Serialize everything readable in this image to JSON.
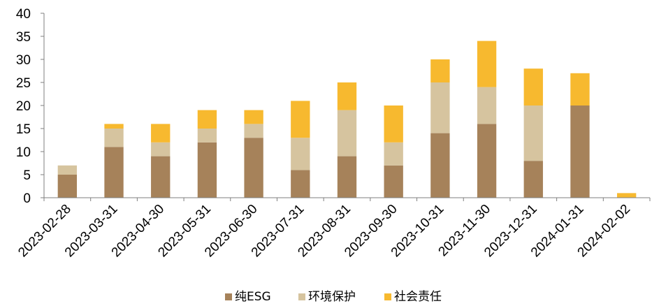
{
  "chart_data": {
    "type": "bar",
    "stacked": true,
    "title": "",
    "xlabel": "",
    "ylabel": "",
    "ylim": [
      0,
      40
    ],
    "yticks": [
      "0",
      "5",
      "10",
      "15",
      "20",
      "25",
      "30",
      "35",
      "40"
    ],
    "grid": false,
    "legend_position": "bottom",
    "categories": [
      "2023-02-28",
      "2023-03-31",
      "2023-04-30",
      "2023-05-31",
      "2023-06-30",
      "2023-07-31",
      "2023-08-31",
      "2023-09-30",
      "2023-10-31",
      "2023-11-30",
      "2023-12-31",
      "2024-01-31",
      "2024-02-02"
    ],
    "series": [
      {
        "name": "纯ESG",
        "color": "#A6825A",
        "values": [
          5,
          11,
          9,
          12,
          13,
          6,
          9,
          7,
          14,
          16,
          8,
          20,
          0
        ]
      },
      {
        "name": "环境保护",
        "color": "#D6C49F",
        "values": [
          2,
          4,
          3,
          3,
          3,
          7,
          10,
          5,
          11,
          8,
          12,
          0,
          0
        ]
      },
      {
        "name": "社会责任",
        "color": "#F7B92F",
        "values": [
          0,
          1,
          4,
          4,
          3,
          8,
          6,
          8,
          5,
          10,
          8,
          7,
          1
        ]
      }
    ]
  }
}
